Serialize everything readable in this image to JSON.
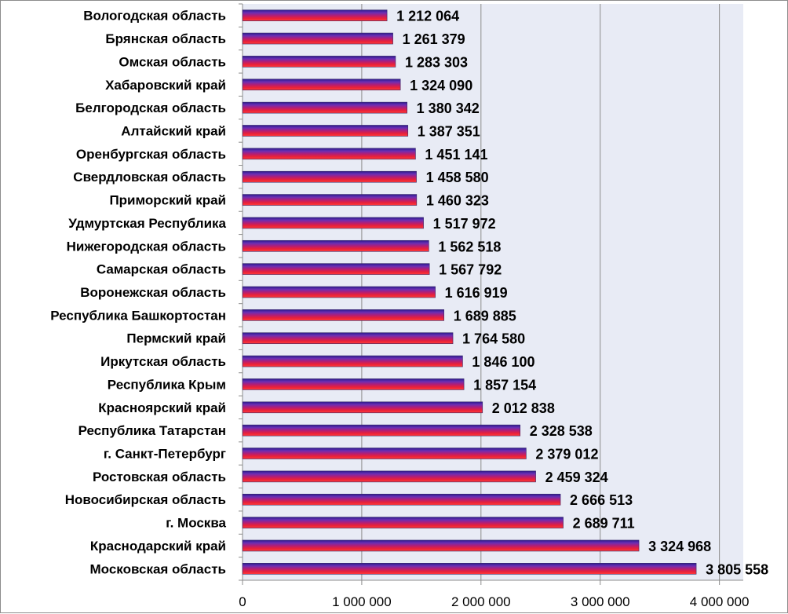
{
  "chart_data": {
    "type": "bar",
    "orientation": "horizontal",
    "categories": [
      "Вологодская область",
      "Брянская область",
      "Омская область",
      "Хабаровский край",
      "Белгородская область",
      "Алтайский край",
      "Оренбургская область",
      "Свердловская область",
      "Приморский край",
      "Удмуртская Республика",
      "Нижегородская область",
      "Самарская область",
      "Воронежская область",
      "Республика Башкортостан",
      "Пермский край",
      "Иркутская область",
      "Республика Крым",
      "Красноярский край",
      "Республика Татарстан",
      "г. Санкт-Петербург",
      "Ростовская область",
      "Новосибирская область",
      "г. Москва",
      "Краснодарский край",
      "Московская область"
    ],
    "values": [
      1212064,
      1261379,
      1283303,
      1324090,
      1380342,
      1387351,
      1451141,
      1458580,
      1460323,
      1517972,
      1562518,
      1567792,
      1616919,
      1689885,
      1764580,
      1846100,
      1857154,
      2012838,
      2328538,
      2379012,
      2459324,
      2666513,
      2689711,
      3324968,
      3805558
    ],
    "value_labels": [
      "1 212 064",
      "1 261 379",
      "1 283 303",
      "1 324 090",
      "1 380 342",
      "1 387 351",
      "1 451 141",
      "1 458 580",
      "1 460 323",
      "1 517 972",
      "1 562 518",
      "1 567 792",
      "1 616 919",
      "1 689 885",
      "1 764 580",
      "1 846 100",
      "1 857 154",
      "2 012 838",
      "2 328 538",
      "2 379 012",
      "2 459 324",
      "2 666 513",
      "2 689 711",
      "3 324 968",
      "3 805 558"
    ],
    "xlim": [
      0,
      4200000
    ],
    "xticks": [
      0,
      1000000,
      2000000,
      3000000,
      4000000
    ],
    "xtick_labels": [
      "0",
      "1 000 000",
      "2 000 000",
      "3 000 000",
      "4 000 000"
    ],
    "title": "",
    "xlabel": "",
    "ylabel": "",
    "grid": "vertical",
    "legend": "none"
  },
  "colors": {
    "plot_background": "#e8ebf5",
    "gridline": "#8c8c8c",
    "bar_gradient": [
      "#2b1a8c",
      "#6a2fb5",
      "#b01e78",
      "#e8203a",
      "#ff3b3b"
    ],
    "bar_outline": "#3a2a6a"
  }
}
